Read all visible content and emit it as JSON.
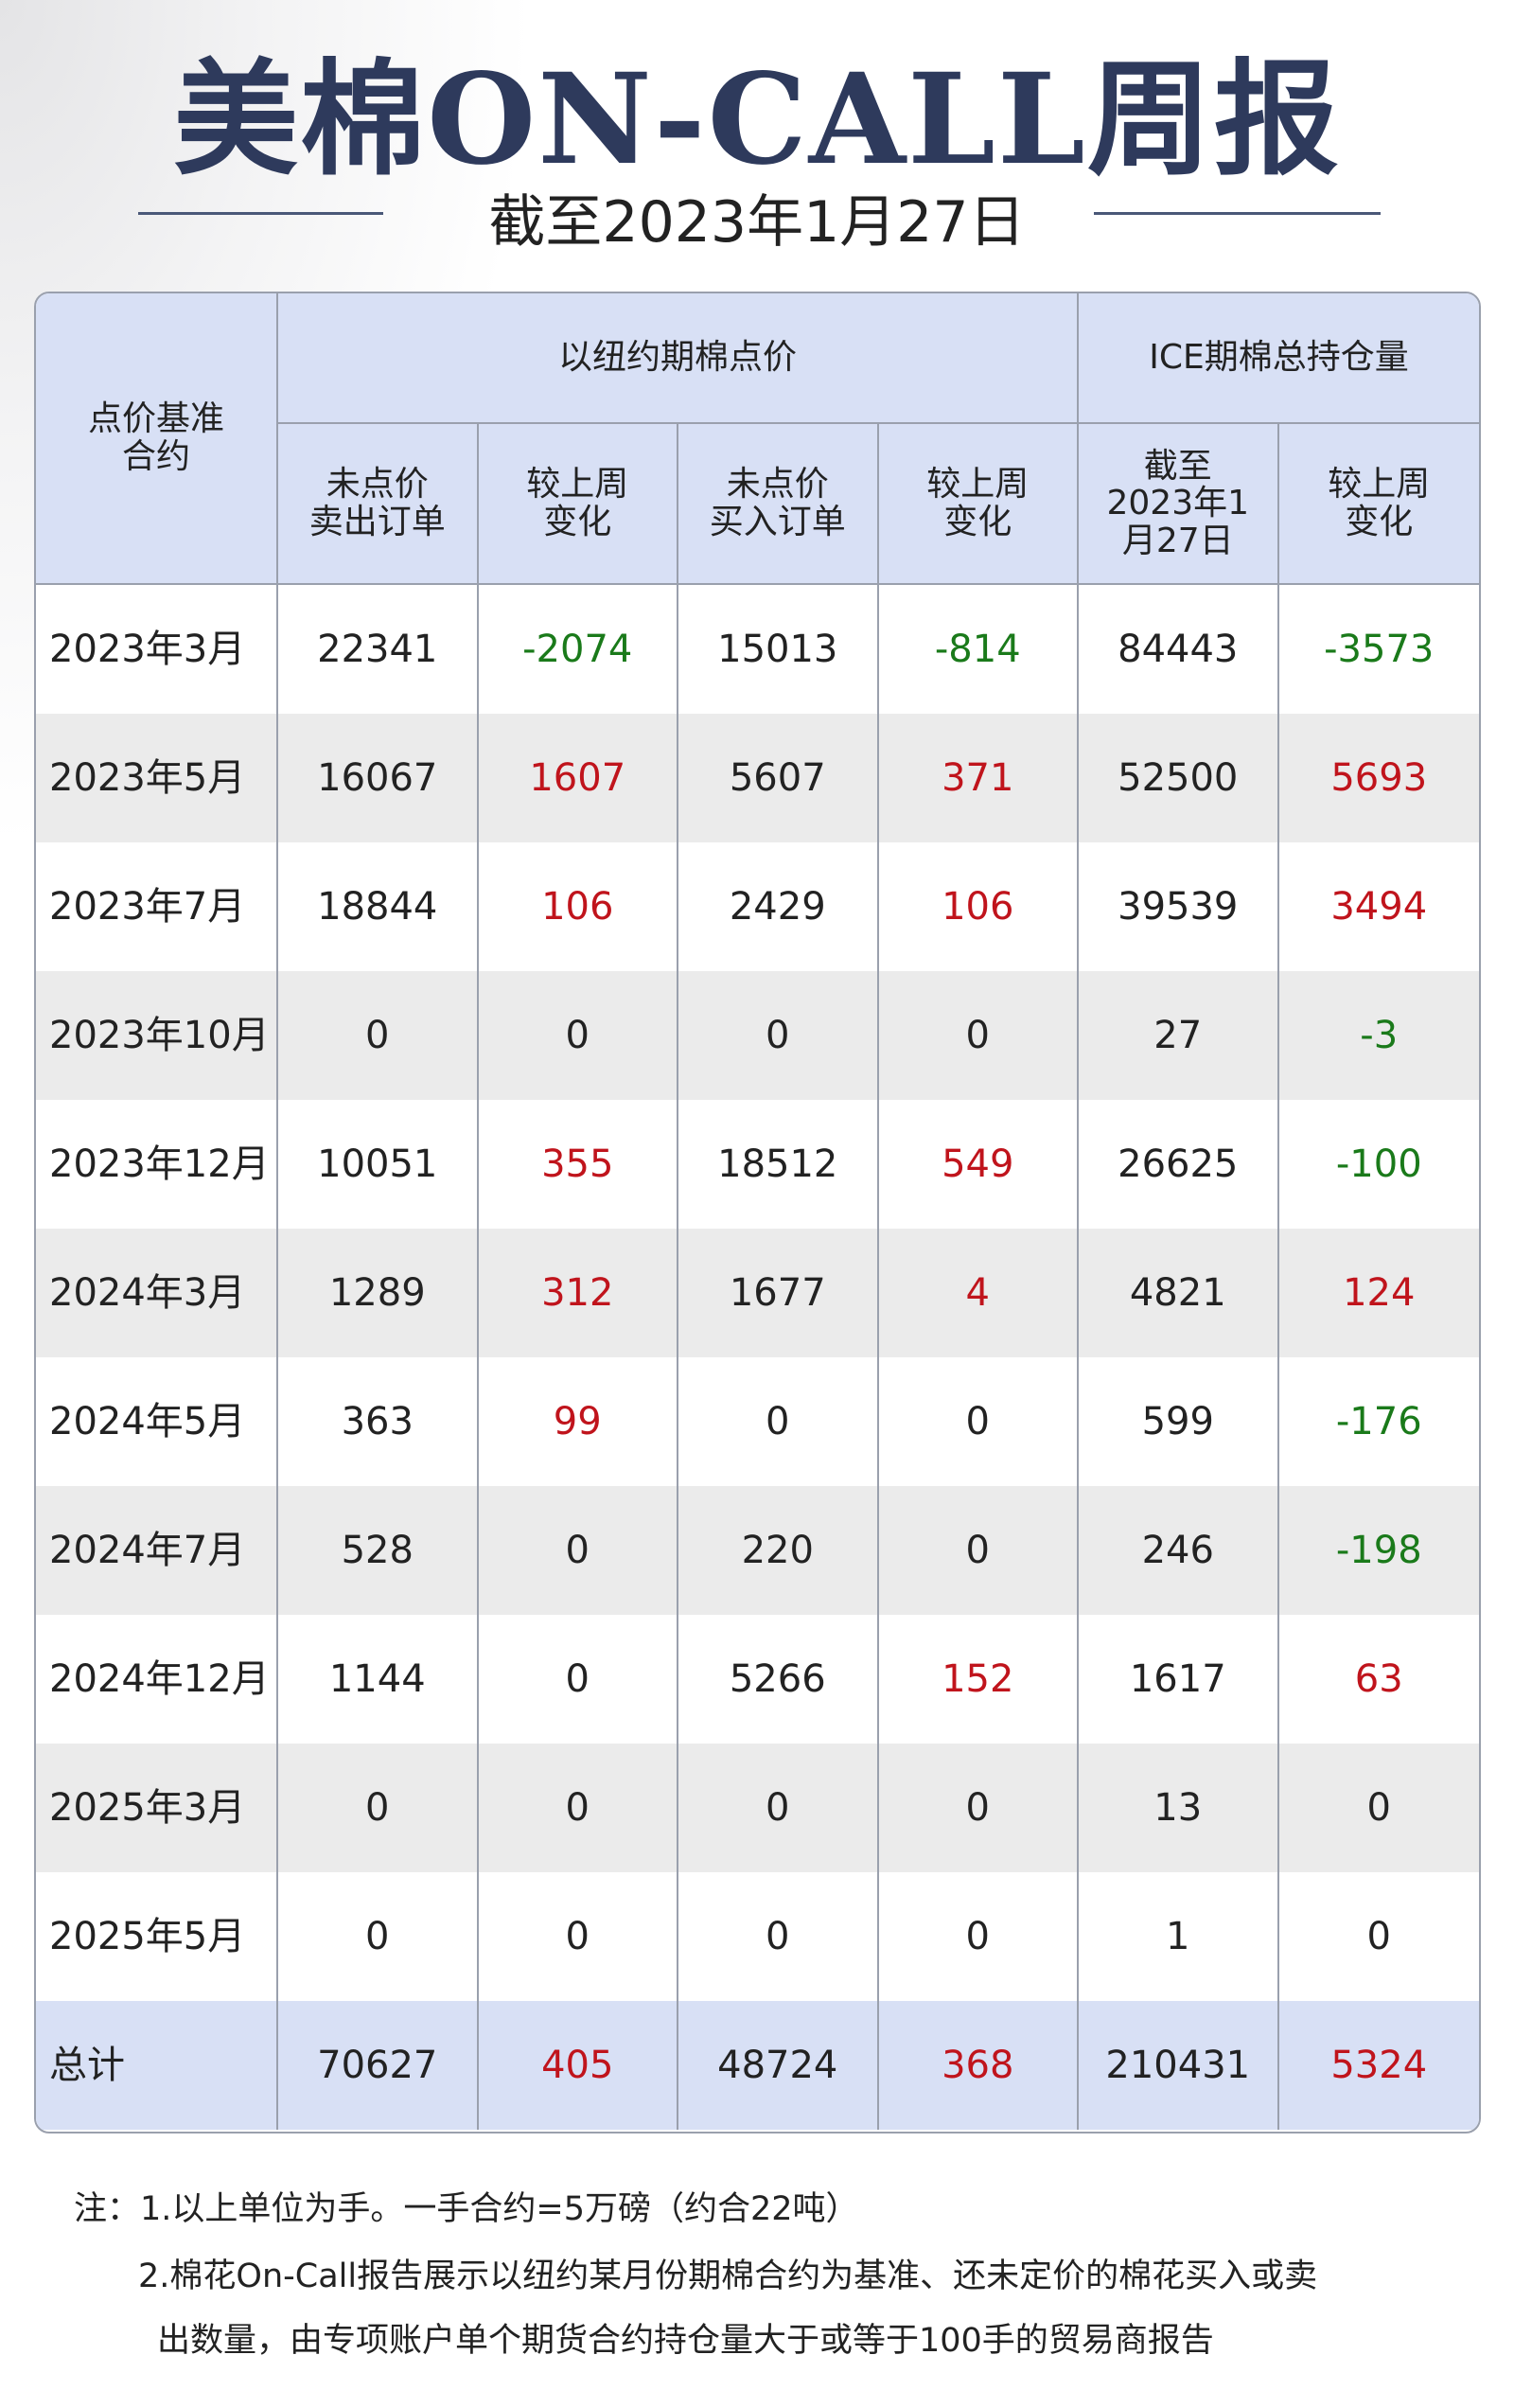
{
  "header": {
    "title": "美棉ON-CALL周报",
    "subtitle": "截至2023年1月27日"
  },
  "table": {
    "corner": [
      "点价基准",
      "合约"
    ],
    "groups": [
      "以纽约期棉点价",
      "ICE期棉总持仓量"
    ],
    "sub_headers": [
      [
        "未点价",
        "卖出订单"
      ],
      [
        "较上周",
        "变化"
      ],
      [
        "未点价",
        "买入订单"
      ],
      [
        "较上周",
        "变化"
      ],
      [
        "截至",
        "2023年1",
        "月27日"
      ],
      [
        "较上周",
        "变化"
      ]
    ],
    "rows": [
      [
        "2023年3月",
        22341,
        -2074,
        15013,
        -814,
        84443,
        -3573
      ],
      [
        "2023年5月",
        16067,
        1607,
        5607,
        371,
        52500,
        5693
      ],
      [
        "2023年7月",
        18844,
        106,
        2429,
        106,
        39539,
        3494
      ],
      [
        "2023年10月",
        0,
        0,
        0,
        0,
        27,
        -3
      ],
      [
        "2023年12月",
        10051,
        355,
        18512,
        549,
        26625,
        -100
      ],
      [
        "2024年3月",
        1289,
        312,
        1677,
        4,
        4821,
        124
      ],
      [
        "2024年5月",
        363,
        99,
        0,
        0,
        599,
        -176
      ],
      [
        "2024年7月",
        528,
        0,
        220,
        0,
        246,
        -198
      ],
      [
        "2024年12月",
        1144,
        0,
        5266,
        152,
        1617,
        63
      ],
      [
        "2025年3月",
        0,
        0,
        0,
        0,
        13,
        0
      ],
      [
        "2025年5月",
        0,
        0,
        0,
        0,
        1,
        0
      ],
      [
        "总计",
        70627,
        405,
        48724,
        368,
        210431,
        5324
      ]
    ]
  },
  "notes": [
    "注：1.以上单位为手。一手合约=5万磅（约合22吨）",
    "2.棉花On-Call报告展示以纽约某月份期棉合约为基准、还未定价的棉花买入或卖",
    "出数量，由专项账户单个期货合约持仓量大于或等于100手的贸易商报告"
  ]
}
